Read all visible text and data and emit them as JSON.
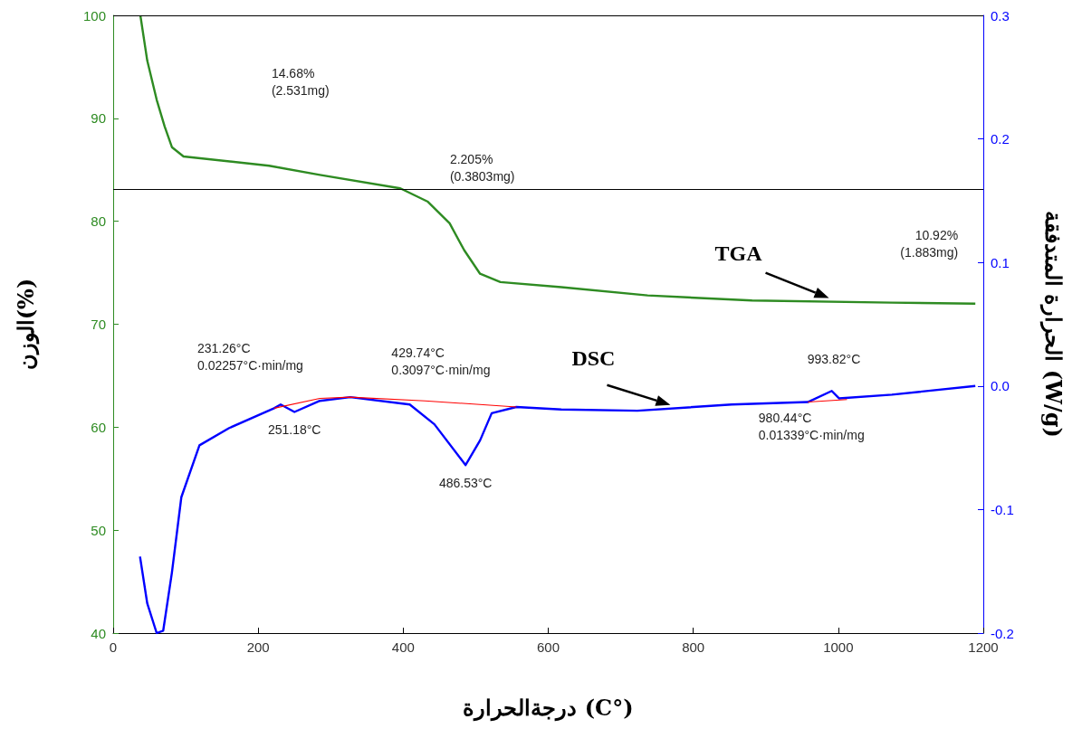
{
  "chart_data": {
    "type": "line",
    "xlabel": "درجةالحرارة (C°)",
    "ylabel": "الوزن(%)",
    "y2label": "الحرارة المتدفقة (W/g)",
    "xlim": [
      0,
      1200
    ],
    "xticks": [
      0,
      200,
      400,
      600,
      800,
      1000,
      1200
    ],
    "ylim": [
      40,
      100
    ],
    "yticks": [
      40,
      50,
      60,
      70,
      80,
      90,
      100
    ],
    "y2lim": [
      -0.2,
      0.3
    ],
    "y2ticks": [
      -0.2,
      -0.1,
      {
        "value": 0,
        "label": "0.0"
      },
      0.1,
      0.2,
      0.3
    ],
    "grid": false,
    "legend": false,
    "marker": "none",
    "line_style": "solid",
    "series": [
      {
        "name": "TGA",
        "color": "#2e8b22",
        "x": [
          37.5,
          47,
          60,
          71,
          81,
          97,
          215,
          285,
          396,
          434,
          464,
          484,
          506,
          534,
          618,
          737,
          881,
          1074,
          1189
        ],
        "values": [
          100,
          95.6,
          91.8,
          89.2,
          87.2,
          86.3,
          85.4,
          84.5,
          83.2,
          81.9,
          79.8,
          77.2,
          74.9,
          74.1,
          73.6,
          72.8,
          72.3,
          72.1,
          72.0
        ]
      },
      {
        "name": "DSC",
        "color": "#0000ff",
        "axis": "y2",
        "x": [
          37,
          47,
          60,
          69,
          81,
          94,
          119,
          160,
          222,
          231,
          250,
          285,
          327,
          409,
          443,
          486,
          506,
          522,
          556,
          618,
          723,
          853,
          958,
          991,
          1001,
          1074,
          1189
        ],
        "values": [
          -0.138,
          -0.176,
          -0.2,
          -0.198,
          -0.151,
          -0.09,
          -0.048,
          -0.034,
          -0.018,
          -0.015,
          -0.021,
          -0.012,
          -0.009,
          -0.015,
          -0.031,
          -0.064,
          -0.044,
          -0.022,
          -0.017,
          -0.019,
          -0.02,
          -0.015,
          -0.013,
          -0.004,
          -0.01,
          -0.007,
          0.0
        ]
      },
      {
        "color": "#ff0000",
        "axis": "y2",
        "x": [
          222,
          285,
          327,
          430,
          556,
          600,
          958,
          1012
        ],
        "values": [
          -0.018,
          -0.01,
          -0.009,
          -0.012,
          -0.017,
          null,
          -0.013,
          -0.011
        ]
      }
    ],
    "ref_lines": [
      {
        "axis": "y",
        "value": 100,
        "color": "#000000"
      },
      {
        "axis": "y",
        "value": 83.1,
        "color": "#000000"
      }
    ],
    "annotations": [
      "14.68%\n(2.531mg)",
      "2.205%\n(0.3803mg)",
      "10.92%\n(1.883mg)",
      {
        "text": "231.26°C\n0.02257°C·min/mg",
        "x": 231,
        "y": 62.2
      },
      {
        "text": "251.18°C",
        "x": 250,
        "y": 61.5
      },
      {
        "text": "429.74°C\n0.3097°C·min/mg",
        "x": 430,
        "y": 62.6
      },
      {
        "text": "486.53°C",
        "x": 486,
        "y": 56.3
      },
      {
        "text": "993.82°C",
        "x": 994,
        "y": 63.5
      },
      {
        "text": "980.44°C\n0.01339°C·min/mg",
        "x": 980,
        "y": 62.6
      }
    ]
  }
}
